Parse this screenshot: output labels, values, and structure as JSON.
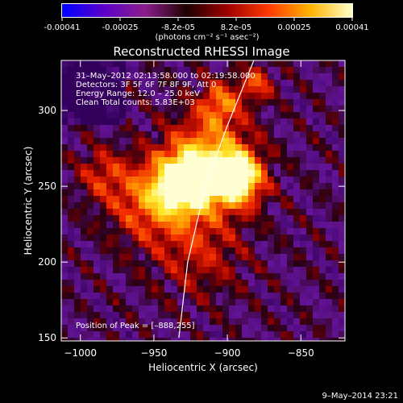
{
  "colorbar": {
    "tick_labels": [
      "-0.00041",
      "-0.00025",
      "-8.2e-05",
      "8.2e-05",
      "0.00025",
      "0.00041"
    ],
    "unit_label": "(photons cm⁻² s⁻¹ asec⁻²)",
    "colors": [
      "#0000ff",
      "#5a00c8",
      "#8c1e8c",
      "#1e0000",
      "#a00000",
      "#ff3c00",
      "#ffb400",
      "#ffffcc"
    ]
  },
  "image": {
    "title": "Reconstructed RHESSI Image",
    "info_lines": [
      "31–May–2012 02:13:58.000 to 02:19:58.000",
      "Detectors: 3F 5F 6F 7F 8F 9F, Att 0",
      "Energy Range: 12.0 – 25.0 keV",
      "Clean      Total counts: 5.83E+03"
    ],
    "peak_label": "Position of Peak = [–888,255]"
  },
  "chart_data": {
    "type": "heatmap",
    "title": "Reconstructed RHESSI Image",
    "xlabel": "Heliocentric X (arcsec)",
    "ylabel": "Heliocentric Y (arcsec)",
    "xlim": [
      -1013,
      -820
    ],
    "ylim": [
      148,
      333
    ],
    "x_ticks": [
      -1000,
      -950,
      -900,
      -850
    ],
    "x_tick_labels": [
      "−1000",
      "−950",
      "−900",
      "−850"
    ],
    "y_ticks": [
      150,
      200,
      250,
      300
    ],
    "y_tick_labels": [
      "150",
      "200",
      "250",
      "300"
    ],
    "peak_position": [
      -888,
      255
    ],
    "sources": [
      {
        "x": -929,
        "y": 252,
        "amp": 0.95,
        "sigma": 14
      },
      {
        "x": -894,
        "y": 255,
        "amp": 1.0,
        "sigma": 12
      },
      {
        "x": -912,
        "y": 270,
        "amp": 0.55,
        "sigma": 20
      },
      {
        "x": -955,
        "y": 240,
        "amp": 0.45,
        "sigma": 18
      },
      {
        "x": -905,
        "y": 305,
        "amp": 0.45,
        "sigma": 10
      },
      {
        "x": -880,
        "y": 318,
        "amp": 0.4,
        "sigma": 8
      },
      {
        "x": -920,
        "y": 210,
        "amp": 0.3,
        "sigma": 22
      },
      {
        "x": -985,
        "y": 258,
        "amp": 0.3,
        "sigma": 12
      }
    ],
    "limb": [
      [
        -882,
        333
      ],
      [
        -900,
        290
      ],
      [
        -915,
        250
      ],
      [
        -927,
        200
      ],
      [
        -933,
        150
      ]
    ]
  },
  "footer": {
    "timestamp": "9–May–2014 23:21"
  }
}
